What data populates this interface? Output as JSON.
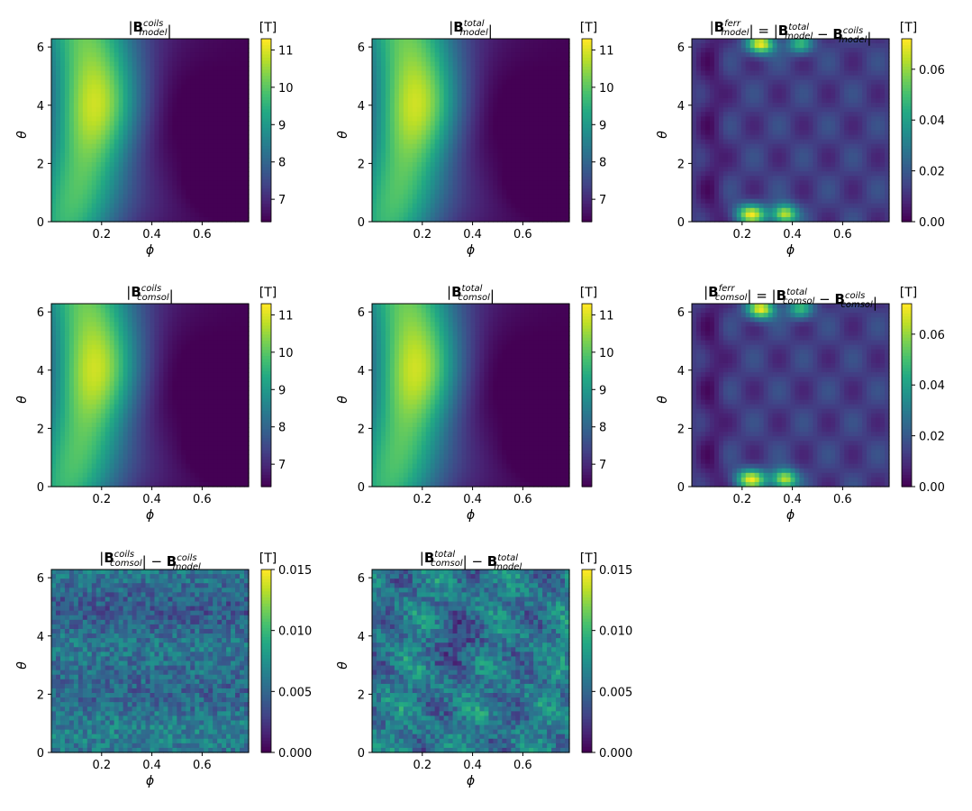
{
  "chart_data": [
    {
      "type": "heatmap",
      "title": "|B_model^coils|",
      "title_parts": {
        "open": "|",
        "base": "B",
        "sup": "coils",
        "sub": "model",
        "close": "|"
      },
      "xlabel": "ϕ",
      "ylabel": "θ",
      "xlim": [
        0.0,
        0.785
      ],
      "ylim": [
        0,
        6.283
      ],
      "xticks": [
        0.2,
        0.4,
        0.6
      ],
      "xtick_labels": [
        "0.2",
        "0.4",
        "0.6"
      ],
      "yticks": [
        0,
        2,
        4,
        6
      ],
      "ytick_labels": [
        "0",
        "2",
        "4",
        "6"
      ],
      "colorbar": {
        "unit": "[T]",
        "range": [
          6.4,
          11.3
        ],
        "ticks": [
          7,
          8,
          9,
          10,
          11
        ],
        "tick_labels": [
          "7",
          "8",
          "9",
          "10",
          "11"
        ]
      },
      "colormap": "viridis",
      "field": "coils"
    },
    {
      "type": "heatmap",
      "title": "|B_model^total|",
      "title_parts": {
        "open": "|",
        "base": "B",
        "sup": "total",
        "sub": "model",
        "close": "|"
      },
      "xlabel": "ϕ",
      "ylabel": "θ",
      "xlim": [
        0.0,
        0.785
      ],
      "ylim": [
        0,
        6.283
      ],
      "xticks": [
        0.2,
        0.4,
        0.6
      ],
      "xtick_labels": [
        "0.2",
        "0.4",
        "0.6"
      ],
      "yticks": [
        0,
        2,
        4,
        6
      ],
      "ytick_labels": [
        "0",
        "2",
        "4",
        "6"
      ],
      "colorbar": {
        "unit": "[T]",
        "range": [
          6.4,
          11.3
        ],
        "ticks": [
          7,
          8,
          9,
          10,
          11
        ],
        "tick_labels": [
          "7",
          "8",
          "9",
          "10",
          "11"
        ]
      },
      "colormap": "viridis",
      "field": "total"
    },
    {
      "type": "heatmap",
      "title": "|B_model^ferr| = |B_model^total − B_model^coils|",
      "title_parts": {
        "open": "|",
        "base": "B",
        "sup": "ferr",
        "sub": "model",
        "close": "|",
        "eq": " = |",
        "base2": "B",
        "sup2": "total",
        "sub2": "model",
        "minus": " − ",
        "base3": "B",
        "sup3": "coils",
        "sub3": "model",
        "close2": "|"
      },
      "xlabel": "ϕ",
      "ylabel": "θ",
      "xlim": [
        0.0,
        0.785
      ],
      "ylim": [
        0,
        6.283
      ],
      "xticks": [
        0.2,
        0.4,
        0.6
      ],
      "xtick_labels": [
        "0.2",
        "0.4",
        "0.6"
      ],
      "yticks": [
        0,
        2,
        4,
        6
      ],
      "ytick_labels": [
        "0",
        "2",
        "4",
        "6"
      ],
      "colorbar": {
        "unit": "[T]",
        "range": [
          0,
          0.072
        ],
        "ticks": [
          0,
          0.02,
          0.04,
          0.06
        ],
        "tick_labels": [
          "0.00",
          "0.02",
          "0.04",
          "0.06"
        ]
      },
      "colormap": "viridis",
      "field": "ferr"
    },
    {
      "type": "heatmap",
      "title": "|B_comsol^coils|",
      "title_parts": {
        "open": "|",
        "base": "B",
        "sup": "coils",
        "sub": "comsol",
        "close": "|"
      },
      "xlabel": "ϕ",
      "ylabel": "θ",
      "xlim": [
        0.0,
        0.785
      ],
      "ylim": [
        0,
        6.283
      ],
      "xticks": [
        0.2,
        0.4,
        0.6
      ],
      "xtick_labels": [
        "0.2",
        "0.4",
        "0.6"
      ],
      "yticks": [
        0,
        2,
        4,
        6
      ],
      "ytick_labels": [
        "0",
        "2",
        "4",
        "6"
      ],
      "colorbar": {
        "unit": "[T]",
        "range": [
          6.4,
          11.3
        ],
        "ticks": [
          7,
          8,
          9,
          10,
          11
        ],
        "tick_labels": [
          "7",
          "8",
          "9",
          "10",
          "11"
        ]
      },
      "colormap": "viridis",
      "field": "coils"
    },
    {
      "type": "heatmap",
      "title": "|B_comsol^total|",
      "title_parts": {
        "open": "|",
        "base": "B",
        "sup": "total",
        "sub": "comsol",
        "close": "|"
      },
      "xlabel": "ϕ",
      "ylabel": "θ",
      "xlim": [
        0.0,
        0.785
      ],
      "ylim": [
        0,
        6.283
      ],
      "xticks": [
        0.2,
        0.4,
        0.6
      ],
      "xtick_labels": [
        "0.2",
        "0.4",
        "0.6"
      ],
      "yticks": [
        0,
        2,
        4,
        6
      ],
      "ytick_labels": [
        "0",
        "2",
        "4",
        "6"
      ],
      "colorbar": {
        "unit": "[T]",
        "range": [
          6.4,
          11.3
        ],
        "ticks": [
          7,
          8,
          9,
          10,
          11
        ],
        "tick_labels": [
          "7",
          "8",
          "9",
          "10",
          "11"
        ]
      },
      "colormap": "viridis",
      "field": "total"
    },
    {
      "type": "heatmap",
      "title": "|B_comsol^ferr| = |B_comsol^total − B_comsol^coils|",
      "title_parts": {
        "open": "|",
        "base": "B",
        "sup": "ferr",
        "sub": "comsol",
        "close": "|",
        "eq": " = |",
        "base2": "B",
        "sup2": "total",
        "sub2": "comsol",
        "minus": " − ",
        "base3": "B",
        "sup3": "coils",
        "sub3": "comsol",
        "close2": "|"
      },
      "xlabel": "ϕ",
      "ylabel": "θ",
      "xlim": [
        0.0,
        0.785
      ],
      "ylim": [
        0,
        6.283
      ],
      "xticks": [
        0.2,
        0.4,
        0.6
      ],
      "xtick_labels": [
        "0.2",
        "0.4",
        "0.6"
      ],
      "yticks": [
        0,
        2,
        4,
        6
      ],
      "ytick_labels": [
        "0",
        "2",
        "4",
        "6"
      ],
      "colorbar": {
        "unit": "[T]",
        "range": [
          0,
          0.072
        ],
        "ticks": [
          0,
          0.02,
          0.04,
          0.06
        ],
        "tick_labels": [
          "0.00",
          "0.02",
          "0.04",
          "0.06"
        ]
      },
      "colormap": "viridis",
      "field": "ferr"
    },
    {
      "type": "heatmap",
      "title": "|B_comsol^coils − B_model^coils|",
      "title_parts": {
        "open": "|",
        "base": "B",
        "sup": "coils",
        "sub": "comsol",
        "minus": " − ",
        "base2": "B",
        "sup2": "coils",
        "sub2": "model",
        "close": "|"
      },
      "xlabel": "ϕ",
      "ylabel": "θ",
      "xlim": [
        0.0,
        0.785
      ],
      "ylim": [
        0,
        6.283
      ],
      "xticks": [
        0.2,
        0.4,
        0.6
      ],
      "xtick_labels": [
        "0.2",
        "0.4",
        "0.6"
      ],
      "yticks": [
        0,
        2,
        4,
        6
      ],
      "ytick_labels": [
        "0",
        "2",
        "4",
        "6"
      ],
      "colorbar": {
        "unit": "[T]",
        "range": [
          0,
          0.015
        ],
        "ticks": [
          0,
          0.005,
          0.01,
          0.015
        ],
        "tick_labels": [
          "0.000",
          "0.005",
          "0.010",
          "0.015"
        ]
      },
      "colormap": "viridis",
      "field": "diff_coils"
    },
    {
      "type": "heatmap",
      "title": "|B_comsol^total − B_model^total|",
      "title_parts": {
        "open": "|",
        "base": "B",
        "sup": "total",
        "sub": "comsol",
        "minus": " − ",
        "base2": "B",
        "sup2": "total",
        "sub2": "model",
        "close": "|"
      },
      "xlabel": "ϕ",
      "ylabel": "θ",
      "xlim": [
        0.0,
        0.785
      ],
      "ylim": [
        0,
        6.283
      ],
      "xticks": [
        0.2,
        0.4,
        0.6
      ],
      "xtick_labels": [
        "0.2",
        "0.4",
        "0.6"
      ],
      "yticks": [
        0,
        2,
        4,
        6
      ],
      "ytick_labels": [
        "0",
        "2",
        "4",
        "6"
      ],
      "colorbar": {
        "unit": "[T]",
        "range": [
          0,
          0.015
        ],
        "ticks": [
          0,
          0.005,
          0.01,
          0.015
        ],
        "tick_labels": [
          "0.000",
          "0.005",
          "0.010",
          "0.015"
        ]
      },
      "colormap": "viridis",
      "field": "diff_total"
    }
  ]
}
